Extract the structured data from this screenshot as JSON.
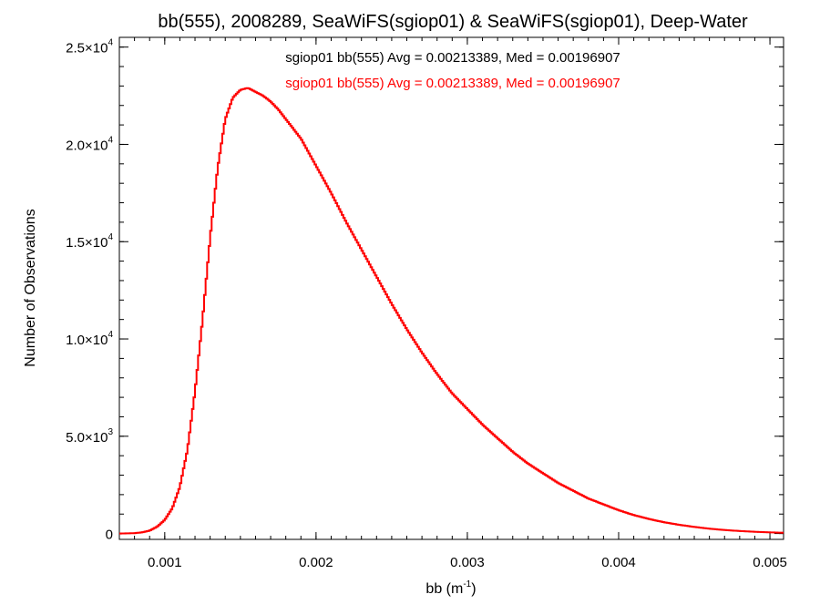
{
  "chart_data": {
    "type": "line",
    "title": "bb(555), 2008289, SeaWiFS(sgiop01) & SeaWiFS(sgiop01), Deep-Water",
    "xlabel_base": "bb (m",
    "xlabel_sup": "-1",
    "xlabel_close": ")",
    "ylabel": "Number of Observations",
    "xlim": [
      0.0007,
      0.00509
    ],
    "ylim": [
      -300,
      25500
    ],
    "x_ticks": [
      {
        "value": 0.001,
        "label": "0.001"
      },
      {
        "value": 0.002,
        "label": "0.002"
      },
      {
        "value": 0.003,
        "label": "0.003"
      },
      {
        "value": 0.004,
        "label": "0.004"
      },
      {
        "value": 0.005,
        "label": "0.005"
      }
    ],
    "y_ticks": [
      {
        "value": 0,
        "mant": "0",
        "exp": ""
      },
      {
        "value": 5000,
        "mant": "5.0×10",
        "exp": "3"
      },
      {
        "value": 10000,
        "mant": "1.0×10",
        "exp": "4"
      },
      {
        "value": 15000,
        "mant": "1.5×10",
        "exp": "4"
      },
      {
        "value": 20000,
        "mant": "2.0×10",
        "exp": "4"
      },
      {
        "value": 25000,
        "mant": "2.5×10",
        "exp": "4"
      }
    ],
    "annotations": [
      {
        "text": "sgiop01 bb(555) Avg = 0.00213389, Med = 0.00196907",
        "color": "#000000"
      },
      {
        "text": "sgiop01 bb(555) Avg = 0.00213389, Med = 0.00196907",
        "color": "#ff0000"
      }
    ],
    "series": [
      {
        "color": "#ff0000",
        "step": true,
        "x": [
          0.0007,
          0.0008,
          0.00085,
          0.0009,
          0.00095,
          0.001,
          0.00105,
          0.0011,
          0.00115,
          0.0012,
          0.00125,
          0.0013,
          0.00135,
          0.0014,
          0.00145,
          0.0015,
          0.00155,
          0.0016,
          0.00165,
          0.0017,
          0.00175,
          0.0018,
          0.0019,
          0.002,
          0.0021,
          0.0022,
          0.0023,
          0.0024,
          0.0025,
          0.0026,
          0.0027,
          0.0028,
          0.0029,
          0.003,
          0.0031,
          0.0032,
          0.0033,
          0.0034,
          0.0035,
          0.0036,
          0.0037,
          0.0038,
          0.0039,
          0.004,
          0.0041,
          0.0042,
          0.0043,
          0.0044,
          0.0045,
          0.0046,
          0.0047,
          0.0048,
          0.0049,
          0.005,
          0.00509
        ],
        "y": [
          0,
          20,
          60,
          150,
          350,
          700,
          1300,
          2400,
          4300,
          7300,
          11000,
          15200,
          18800,
          21300,
          22400,
          22800,
          22900,
          22700,
          22500,
          22200,
          21800,
          21300,
          20300,
          18900,
          17500,
          16000,
          14600,
          13200,
          11800,
          10500,
          9300,
          8200,
          7200,
          6400,
          5600,
          4900,
          4200,
          3600,
          3100,
          2600,
          2200,
          1800,
          1500,
          1200,
          950,
          750,
          580,
          450,
          340,
          250,
          180,
          130,
          90,
          60,
          40
        ]
      }
    ]
  }
}
